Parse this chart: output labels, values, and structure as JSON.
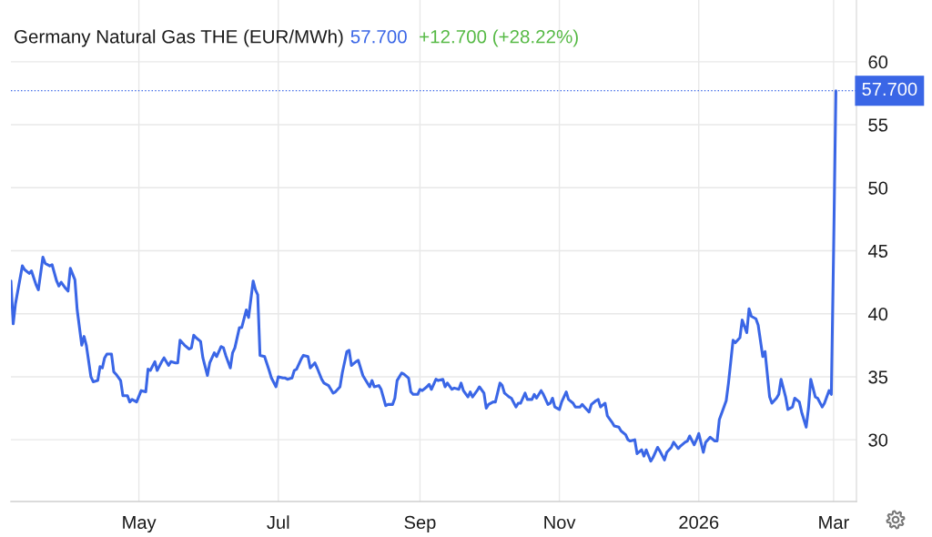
{
  "chart_data": {
    "type": "line",
    "title": "Germany Natural Gas THE (EUR/MWh)",
    "annotations": [
      "57.700",
      "+12.700 (+28.22%)"
    ],
    "x": [
      "2025-03-06",
      "2025-03-07",
      "2025-03-08",
      "2025-03-11",
      "2025-03-12",
      "2025-03-14",
      "2025-03-15",
      "2025-03-17",
      "2025-03-18",
      "2025-03-20",
      "2025-03-21",
      "2025-03-23",
      "2025-03-24",
      "2025-03-26",
      "2025-03-27",
      "2025-03-28",
      "2025-03-30",
      "2025-03-31",
      "2025-04-01",
      "2025-04-03",
      "2025-04-04",
      "2025-04-06",
      "2025-04-07",
      "2025-04-08",
      "2025-04-10",
      "2025-04-11",
      "2025-04-13",
      "2025-04-14",
      "2025-04-15",
      "2025-04-16",
      "2025-04-17",
      "2025-04-19",
      "2025-04-20",
      "2025-04-21",
      "2025-04-23",
      "2025-04-24",
      "2025-04-26",
      "2025-04-27",
      "2025-04-28",
      "2025-04-30",
      "2025-05-02",
      "2025-05-04",
      "2025-05-05",
      "2025-05-06",
      "2025-05-08",
      "2025-05-09",
      "2025-05-11",
      "2025-05-12",
      "2025-05-14",
      "2025-05-15",
      "2025-05-17",
      "2025-05-18",
      "2025-05-19",
      "2025-05-21",
      "2025-05-23",
      "2025-05-24",
      "2025-05-25",
      "2025-05-26",
      "2025-05-28",
      "2025-05-29",
      "2025-05-31",
      "2025-06-01",
      "2025-06-03",
      "2025-06-04",
      "2025-06-06",
      "2025-06-07",
      "2025-06-08",
      "2025-06-10",
      "2025-06-11",
      "2025-06-12",
      "2025-06-14",
      "2025-06-15",
      "2025-06-17",
      "2025-06-18",
      "2025-06-20",
      "2025-06-21",
      "2025-06-22",
      "2025-06-23",
      "2025-06-25",
      "2025-06-27",
      "2025-06-28",
      "2025-06-30",
      "2025-07-01",
      "2025-07-03",
      "2025-07-04",
      "2025-07-05",
      "2025-07-07",
      "2025-07-08",
      "2025-07-09",
      "2025-07-11",
      "2025-07-12",
      "2025-07-14",
      "2025-07-15",
      "2025-07-17",
      "2025-07-18",
      "2025-07-20",
      "2025-07-21",
      "2025-07-23",
      "2025-07-24",
      "2025-07-25",
      "2025-07-26",
      "2025-07-28",
      "2025-07-29",
      "2025-07-31",
      "2025-08-01",
      "2025-08-02",
      "2025-08-04",
      "2025-08-05",
      "2025-08-07",
      "2025-08-08",
      "2025-08-10",
      "2025-08-11",
      "2025-08-12",
      "2025-08-14",
      "2025-08-15",
      "2025-08-17",
      "2025-08-18",
      "2025-08-20",
      "2025-08-21",
      "2025-08-22",
      "2025-08-24",
      "2025-08-25",
      "2025-08-27",
      "2025-08-28",
      "2025-08-29",
      "2025-08-31",
      "2025-09-01",
      "2025-09-02",
      "2025-09-04",
      "2025-09-05",
      "2025-09-06",
      "2025-09-08",
      "2025-09-09",
      "2025-09-11",
      "2025-09-12",
      "2025-09-13",
      "2025-09-15",
      "2025-09-16",
      "2025-09-18",
      "2025-09-19",
      "2025-09-20",
      "2025-09-22",
      "2025-09-23",
      "2025-09-24",
      "2025-09-26",
      "2025-09-27",
      "2025-09-29",
      "2025-09-30",
      "2025-10-01",
      "2025-10-03",
      "2025-10-04",
      "2025-10-06",
      "2025-10-07",
      "2025-10-08",
      "2025-10-10",
      "2025-10-11",
      "2025-10-13",
      "2025-10-14",
      "2025-10-15",
      "2025-10-17",
      "2025-10-18",
      "2025-10-20",
      "2025-10-21",
      "2025-10-22",
      "2025-10-24",
      "2025-10-25",
      "2025-10-27",
      "2025-10-28",
      "2025-10-29",
      "2025-10-30",
      "2025-11-01",
      "2025-11-02",
      "2025-11-04",
      "2025-11-05",
      "2025-11-07",
      "2025-11-08",
      "2025-11-10",
      "2025-11-11",
      "2025-11-12",
      "2025-11-14",
      "2025-11-15",
      "2025-11-17",
      "2025-11-18",
      "2025-11-19",
      "2025-11-21",
      "2025-11-22",
      "2025-11-24",
      "2025-11-25",
      "2025-11-27",
      "2025-11-28",
      "2025-11-30",
      "2025-12-01",
      "2025-12-02",
      "2025-12-04",
      "2025-12-05",
      "2025-12-07",
      "2025-12-08",
      "2025-12-09",
      "2025-12-11",
      "2025-12-12",
      "2025-12-14",
      "2025-12-15",
      "2025-12-17",
      "2025-12-18",
      "2025-12-20",
      "2025-12-21",
      "2025-12-23",
      "2025-12-24",
      "2025-12-26",
      "2025-12-27",
      "2025-12-28",
      "2025-12-30",
      "2025-12-31",
      "2026-01-01",
      "2026-01-03",
      "2026-01-04",
      "2026-01-06",
      "2026-01-08",
      "2026-01-09",
      "2026-01-10",
      "2026-01-12",
      "2026-01-13",
      "2026-01-14",
      "2026-01-16",
      "2026-01-17",
      "2026-01-19",
      "2026-01-20",
      "2026-01-22",
      "2026-01-23",
      "2026-01-24",
      "2026-01-26",
      "2026-01-27",
      "2026-01-29",
      "2026-01-30",
      "2026-02-01",
      "2026-02-02",
      "2026-02-04",
      "2026-02-05",
      "2026-02-06",
      "2026-02-08",
      "2026-02-09",
      "2026-02-11",
      "2026-02-12",
      "2026-02-14",
      "2026-02-15",
      "2026-02-17",
      "2026-02-18",
      "2026-02-19",
      "2026-02-21",
      "2026-02-22",
      "2026-02-24",
      "2026-02-25",
      "2026-02-27",
      "2026-02-28",
      "2026-03-01",
      "2026-03-02"
    ],
    "series": [
      {
        "color": "#3a66e6",
        "values": [
          42.6,
          39.2,
          40.8,
          43.8,
          43.5,
          43.2,
          43.4,
          42.3,
          41.9,
          44.5,
          44.0,
          43.8,
          43.9,
          42.6,
          42.2,
          42.5,
          42.0,
          41.8,
          43.6,
          42.7,
          40.3,
          37.5,
          38.2,
          37.5,
          35.0,
          34.6,
          34.7,
          35.8,
          35.7,
          36.5,
          36.8,
          36.8,
          35.4,
          35.2,
          34.7,
          33.5,
          33.5,
          33.0,
          33.2,
          33.0,
          33.9,
          33.8,
          35.6,
          35.5,
          36.2,
          35.5,
          36.2,
          36.5,
          35.9,
          36.2,
          36.1,
          36.1,
          37.9,
          37.5,
          37.2,
          37.3,
          38.3,
          38.1,
          37.8,
          36.5,
          35.1,
          36.1,
          36.9,
          36.6,
          37.4,
          37.3,
          36.7,
          35.7,
          36.9,
          37.3,
          38.9,
          38.9,
          40.3,
          39.7,
          42.6,
          41.9,
          41.5,
          36.7,
          36.6,
          35.5,
          34.9,
          34.2,
          35.0,
          34.9,
          34.9,
          34.8,
          34.9,
          35.5,
          35.6,
          36.4,
          36.7,
          36.6,
          35.7,
          36.1,
          35.7,
          34.8,
          34.5,
          34.3,
          34.0,
          33.7,
          33.8,
          34.2,
          35.3,
          37.0,
          37.1,
          35.9,
          36.2,
          36.3,
          35.1,
          34.8,
          34.2,
          34.7,
          34.2,
          34.3,
          34.0,
          32.7,
          32.8,
          32.8,
          33.3,
          34.7,
          35.3,
          35.2,
          34.9,
          33.8,
          33.6,
          33.6,
          34.0,
          33.9,
          34.2,
          34.4,
          34.0,
          34.8,
          34.7,
          34.8,
          34.2,
          34.5,
          34.0,
          34.1,
          34.0,
          34.5,
          33.9,
          33.4,
          33.8,
          33.4,
          33.9,
          34.2,
          33.7,
          32.5,
          32.8,
          33.0,
          33.0,
          34.5,
          34.3,
          33.7,
          33.4,
          33.3,
          32.6,
          32.9,
          32.9,
          33.7,
          33.2,
          33.2,
          33.6,
          33.3,
          33.9,
          33.6,
          32.8,
          32.9,
          33.3,
          32.6,
          32.4,
          33.0,
          33.8,
          33.2,
          32.9,
          32.6,
          32.6,
          32.8,
          32.6,
          32.2,
          32.8,
          33.1,
          33.2,
          32.6,
          32.9,
          31.9,
          31.4,
          31.1,
          31.0,
          30.7,
          30.4,
          30.0,
          29.9,
          30.0,
          28.9,
          29.2,
          28.7,
          29.2,
          28.3,
          28.6,
          29.4,
          29.1,
          28.4,
          29.0,
          29.4,
          29.8,
          29.3,
          29.5,
          29.8,
          29.9,
          30.3,
          29.6,
          30.0,
          30.5,
          29.0,
          29.8,
          30.2,
          29.9,
          29.9,
          31.6,
          32.6,
          33.1,
          34.5,
          37.9,
          37.7,
          38.1,
          39.5,
          38.5,
          40.4,
          39.8,
          39.6,
          39.1,
          36.6,
          37.0,
          33.4,
          32.9,
          33.3,
          33.6,
          34.8,
          33.4,
          32.4,
          32.6,
          33.3,
          33.0,
          32.2,
          31.0,
          32.5,
          34.8,
          33.4,
          33.3,
          32.6,
          32.9,
          33.9,
          33.6,
          45.0,
          57.7
        ]
      }
    ],
    "xlim": [
      "2025-03-06",
      "2026-03-11"
    ],
    "xticks": [
      {
        "value": "2025-05-01",
        "label": "May"
      },
      {
        "value": "2025-07-01",
        "label": "Jul"
      },
      {
        "value": "2025-09-01",
        "label": "Sep"
      },
      {
        "value": "2025-11-01",
        "label": "Nov"
      },
      {
        "value": "2026-01-01",
        "label": "2026"
      },
      {
        "value": "2026-03-01",
        "label": "Mar"
      }
    ],
    "ylim": [
      25.1,
      64.9
    ],
    "yticks": [
      30,
      35,
      40,
      45,
      50,
      55,
      60
    ],
    "grid": true,
    "ref_lines": [
      {
        "axis": "y",
        "value": 57.7,
        "label": "57.700",
        "color": "#3a66e6",
        "line_style": "dotted"
      }
    ]
  }
}
